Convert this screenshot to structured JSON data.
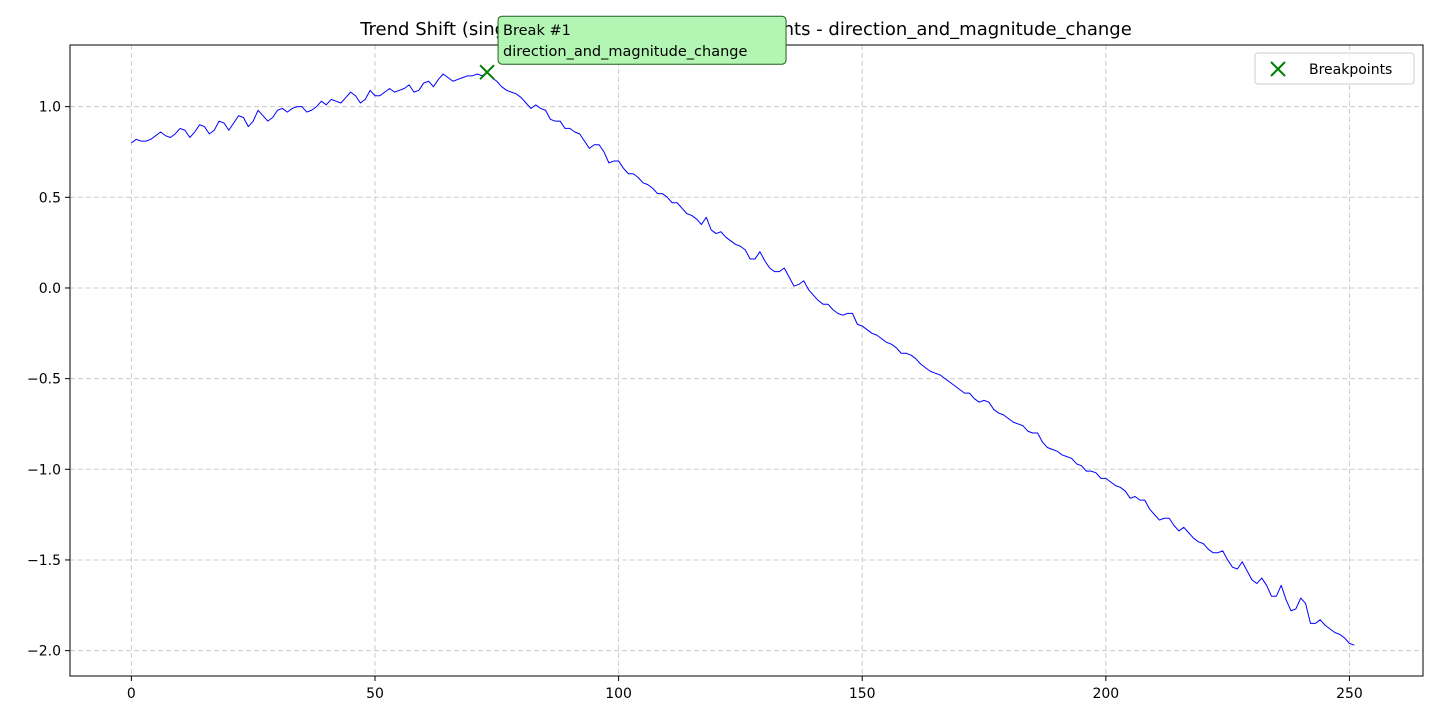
{
  "chart_data": {
    "type": "line",
    "title": "Trend Shift (single) - Beginning location - 1 events - direction_and_magnitude_change",
    "xlabel": "",
    "ylabel": "",
    "xlim": [
      -12.6,
      265.1
    ],
    "ylim": [
      -2.14,
      1.34
    ],
    "x_ticks": [
      0,
      50,
      100,
      150,
      200,
      250
    ],
    "y_ticks": [
      1.0,
      0.5,
      0.0,
      -0.5,
      -1.0,
      -1.5,
      -2.0
    ],
    "y_tick_labels": [
      "1.0",
      "0.5",
      "0.0",
      "−0.5",
      "−1.0",
      "−1.5",
      "−2.0"
    ],
    "grid": true,
    "legend_position": "top-right",
    "series": [
      {
        "color": "#0000ff",
        "line_x_start": 0,
        "line_x_step": 1,
        "values": [
          0.8,
          0.82,
          0.81,
          0.81,
          0.82,
          0.84,
          0.86,
          0.84,
          0.83,
          0.85,
          0.88,
          0.87,
          0.83,
          0.86,
          0.9,
          0.89,
          0.85,
          0.87,
          0.92,
          0.91,
          0.87,
          0.91,
          0.95,
          0.94,
          0.89,
          0.92,
          0.98,
          0.95,
          0.92,
          0.94,
          0.98,
          0.99,
          0.97,
          0.99,
          1.0,
          1.0,
          0.97,
          0.98,
          1.0,
          1.03,
          1.01,
          1.04,
          1.03,
          1.02,
          1.05,
          1.08,
          1.06,
          1.02,
          1.04,
          1.09,
          1.06,
          1.06,
          1.08,
          1.1,
          1.08,
          1.09,
          1.1,
          1.12,
          1.08,
          1.09,
          1.13,
          1.14,
          1.11,
          1.15,
          1.18,
          1.16,
          1.14,
          1.15,
          1.16,
          1.17,
          1.17,
          1.18,
          1.17,
          1.19,
          1.16,
          1.14,
          1.11,
          1.09,
          1.08,
          1.07,
          1.05,
          1.02,
          0.99,
          1.01,
          0.99,
          0.98,
          0.93,
          0.92,
          0.92,
          0.88,
          0.88,
          0.86,
          0.85,
          0.81,
          0.77,
          0.79,
          0.79,
          0.75,
          0.69,
          0.7,
          0.7,
          0.66,
          0.63,
          0.63,
          0.61,
          0.58,
          0.57,
          0.55,
          0.52,
          0.52,
          0.5,
          0.47,
          0.47,
          0.44,
          0.41,
          0.4,
          0.38,
          0.35,
          0.39,
          0.32,
          0.3,
          0.31,
          0.28,
          0.26,
          0.24,
          0.23,
          0.21,
          0.16,
          0.16,
          0.2,
          0.15,
          0.11,
          0.09,
          0.09,
          0.11,
          0.06,
          0.01,
          0.02,
          0.04,
          -0.01,
          -0.04,
          -0.07,
          -0.09,
          -0.09,
          -0.12,
          -0.14,
          -0.15,
          -0.14,
          -0.14,
          -0.2,
          -0.21,
          -0.23,
          -0.25,
          -0.26,
          -0.28,
          -0.3,
          -0.31,
          -0.33,
          -0.36,
          -0.36,
          -0.37,
          -0.39,
          -0.42,
          -0.44,
          -0.46,
          -0.47,
          -0.48,
          -0.5,
          -0.52,
          -0.54,
          -0.56,
          -0.58,
          -0.58,
          -0.61,
          -0.63,
          -0.62,
          -0.63,
          -0.67,
          -0.69,
          -0.7,
          -0.72,
          -0.74,
          -0.75,
          -0.76,
          -0.79,
          -0.8,
          -0.8,
          -0.85,
          -0.88,
          -0.89,
          -0.9,
          -0.92,
          -0.93,
          -0.94,
          -0.97,
          -0.98,
          -1.01,
          -1.01,
          -1.02,
          -1.05,
          -1.05,
          -1.07,
          -1.09,
          -1.1,
          -1.12,
          -1.16,
          -1.15,
          -1.17,
          -1.17,
          -1.22,
          -1.25,
          -1.28,
          -1.27,
          -1.27,
          -1.31,
          -1.34,
          -1.32,
          -1.35,
          -1.38,
          -1.4,
          -1.41,
          -1.44,
          -1.46,
          -1.46,
          -1.45,
          -1.5,
          -1.54,
          -1.55,
          -1.51,
          -1.56,
          -1.61,
          -1.63,
          -1.6,
          -1.64,
          -1.7,
          -1.7,
          -1.64,
          -1.72,
          -1.78,
          -1.77,
          -1.71,
          -1.74,
          -1.85,
          -1.85,
          -1.83,
          -1.86,
          -1.88,
          -1.9,
          -1.91,
          -1.93,
          -1.96,
          -1.97
        ]
      }
    ],
    "breakpoints": [
      {
        "x": 73,
        "y": 1.19,
        "color": "#008000",
        "label_line1": "Break #1",
        "label_line2": "direction_and_magnitude_change"
      }
    ],
    "legend": {
      "label": "Breakpoints"
    },
    "annotation_style": {
      "fill": "#b3f5b3",
      "edge": "#1f5f1f"
    }
  }
}
